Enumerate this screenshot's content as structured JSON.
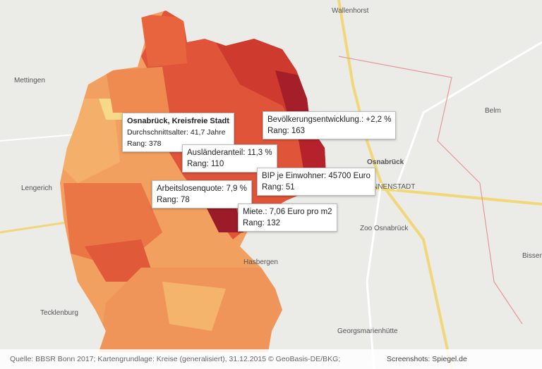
{
  "map_labels": [
    "Wallenhorst",
    "Mettingen",
    "Belm",
    "Osnabrück",
    "NNENSTADT",
    "Zoo Osnabrück",
    "Tecklenburg",
    "Georgsmarienhütte",
    "Lengerich",
    "Hasbergen",
    "Bissendorf"
  ],
  "tooltips": [
    {
      "title": "Osnabrück, Kreisfreie Stadt",
      "lines": [
        "Durchschnittsalter: 41,7 Jahre",
        "Rang: 378"
      ]
    },
    {
      "lines": [
        "Bevölkerungsentwicklung.: +2,2 %",
        "Rang: 163"
      ]
    },
    {
      "lines": [
        "Ausländeranteil: 11,3 %",
        "Rang: 110"
      ]
    },
    {
      "lines": [
        "BIP je Einwohner: 45700 Euro",
        "Rang: 51"
      ]
    },
    {
      "lines": [
        "Arbeitslosenquote: 7,9 %",
        "Rang: 78"
      ]
    },
    {
      "lines": [
        "Miete.: 7,06 Euro pro m2",
        "Rang: 132"
      ]
    }
  ],
  "footer": {
    "source": "Quelle: BBSR Bonn 2017; Kartengrundlage: Kreise (generalisiert), 31.12.2015 © GeoBasis-DE/BKG;",
    "credit": "Screenshots: Spiegel.de"
  }
}
